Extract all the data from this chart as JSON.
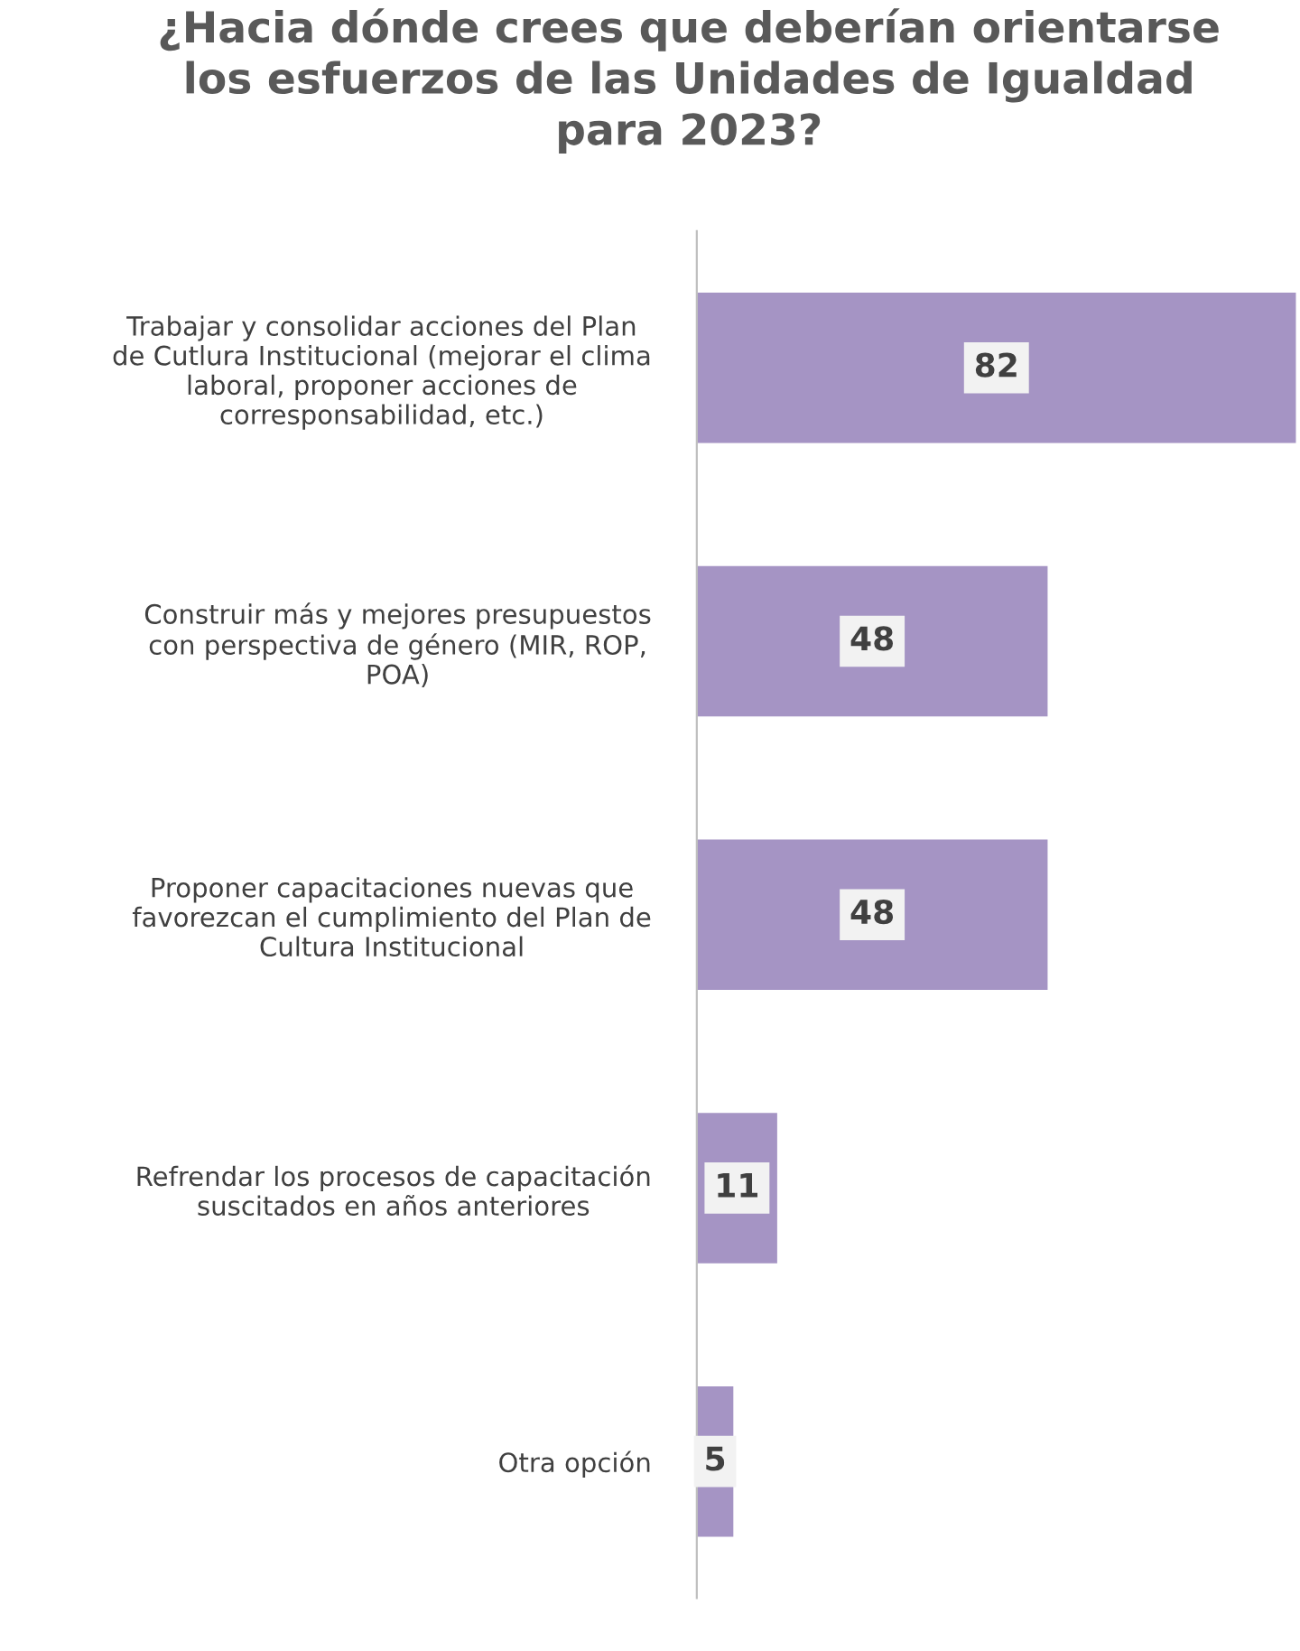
{
  "chart_data": {
    "type": "bar",
    "orientation": "horizontal",
    "title": "¿Hacia dónde crees que deberían orientarse\nlos esfuerzos de las Unidades de Igualdad\npara 2023?",
    "categories": [
      "Trabajar y consolidar acciones del Plan\nde Cutlura Institucional (mejorar el clima\nlaboral, proponer acciones de\ncorresponsabilidad, etc.)",
      "Construir más y mejores presupuestos\ncon perspectiva de género (MIR, ROP,\nPOA)",
      "Proponer capacitaciones nuevas que\nfavorezcan el cumplimiento del Plan de\nCultura Institucional",
      "Refrendar los procesos de capacitación\nsuscitados en años anteriores",
      "Otra opción"
    ],
    "values": [
      82,
      48,
      48,
      11,
      5
    ],
    "color": "#a594c4",
    "data_labels": true,
    "tick_labels": "y",
    "grid": false,
    "legend": false
  }
}
